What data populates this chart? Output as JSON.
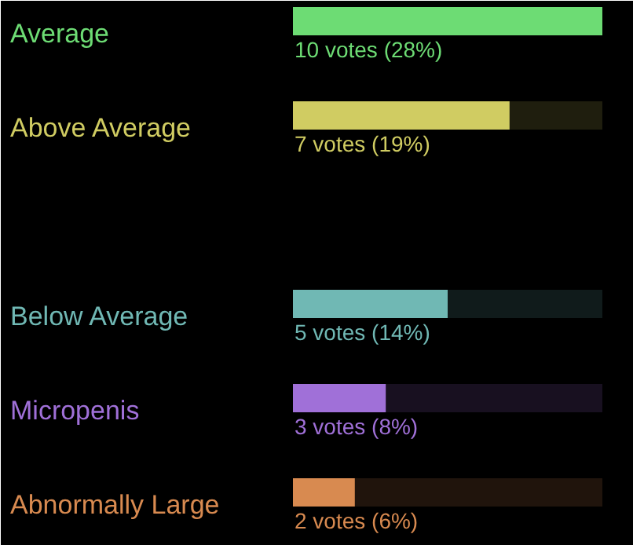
{
  "chart_data": {
    "type": "bar",
    "orientation": "horizontal",
    "categories": [
      "Average",
      "Above Average",
      null,
      "Below Average",
      "Micropenis",
      "Abnormally Large"
    ],
    "values": [
      10,
      7,
      null,
      5,
      3,
      2
    ],
    "colors": [
      "#6ddc74",
      "#d0cc62",
      "#e03030",
      "#70b8b4",
      "#a070d8",
      "#d88a50"
    ],
    "value_labels": [
      "10 votes (28%)",
      "7 votes (19%)",
      null,
      "5 votes (14%)",
      "3 votes (8%)",
      "2 votes (6%)"
    ]
  }
}
